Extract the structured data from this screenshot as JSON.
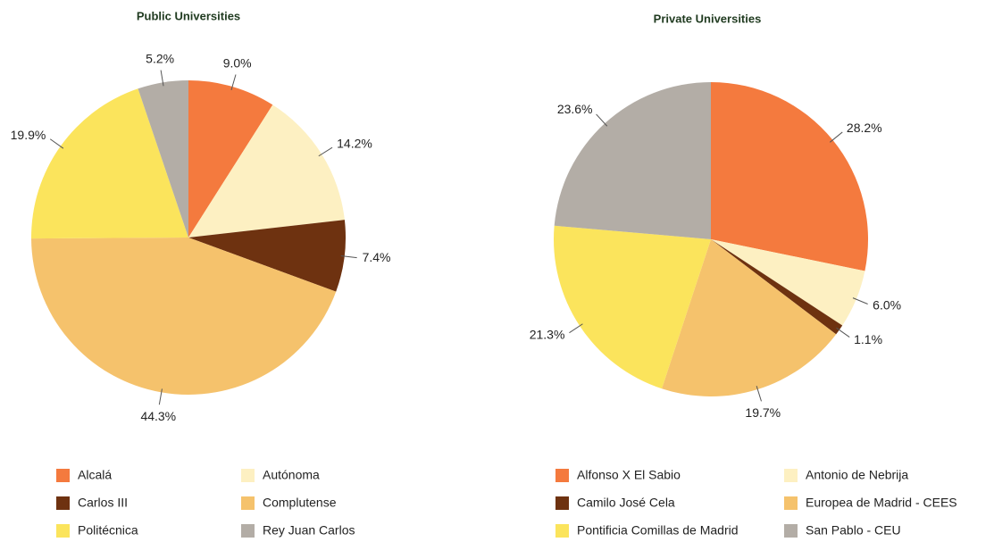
{
  "chart_data": [
    {
      "type": "pie",
      "title": "Public Universities",
      "categories": [
        "Alcalá",
        "Autónoma",
        "Carlos III",
        "Complutense",
        "Politécnica",
        "Rey Juan Carlos"
      ],
      "values": [
        9.0,
        14.2,
        7.4,
        44.3,
        19.9,
        5.2
      ],
      "value_labels": [
        "9.0%",
        "14.2%",
        "7.4%",
        "44.3%",
        "19.9%",
        "5.2%"
      ],
      "colors": [
        "#f47a3e",
        "#fdf0c2",
        "#6e3210",
        "#f5c26c",
        "#fbe45c",
        "#b3ada6"
      ]
    },
    {
      "type": "pie",
      "title": "Private Universities",
      "categories": [
        "Alfonso X El Sabio",
        "Antonio de Nebrija",
        "Camilo José Cela",
        "Europea de Madrid - CEES",
        "Pontificia Comillas de Madrid",
        "San Pablo - CEU"
      ],
      "values": [
        28.2,
        6.0,
        1.1,
        19.7,
        21.3,
        23.6
      ],
      "value_labels": [
        "28.2%",
        "6.0%",
        "1.1%",
        "19.7%",
        "21.3%",
        "23.6%"
      ],
      "colors": [
        "#f47a3e",
        "#fdf0c2",
        "#6e3210",
        "#f5c26c",
        "#fbe45c",
        "#b3ada6"
      ]
    }
  ]
}
